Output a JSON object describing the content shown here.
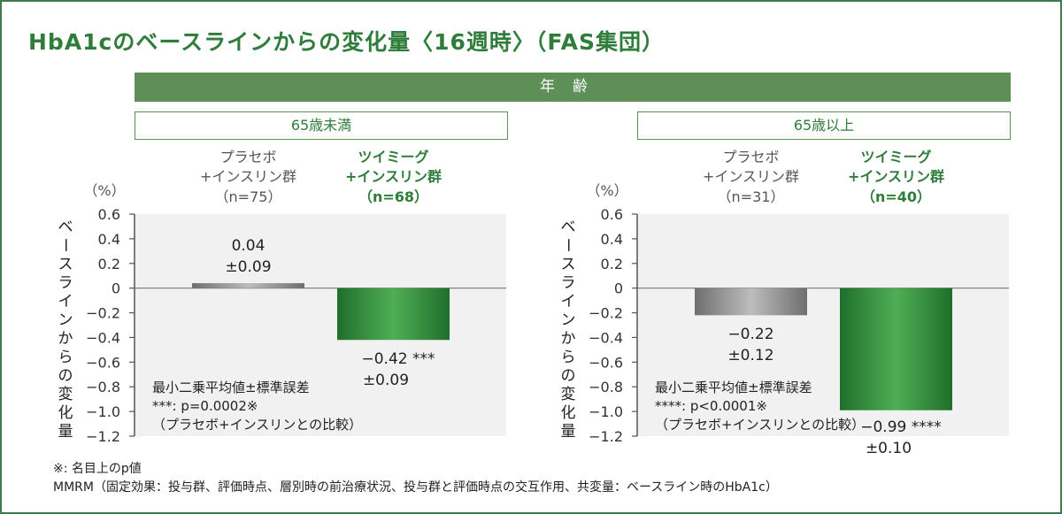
{
  "title": "HbA1cのベースラインからの変化量〈16週時〉（FAS集団）",
  "age_header": "年齢",
  "groups": [
    {
      "label": "65歳未満"
    },
    {
      "label": "65歳以上"
    }
  ],
  "y_axis_label": "ベースラインからの変化量",
  "unit": "（%）",
  "colors": {
    "accent": "#5d8f57",
    "green_bar": "#2f8a3c",
    "gray_bar": "#8c8c8c",
    "plot_bg": "#f1f1f1"
  },
  "chart_data": [
    {
      "type": "bar",
      "group": "65歳未満",
      "ylim": [
        -1.2,
        0.6
      ],
      "yticks": [
        0.6,
        0.4,
        0.2,
        0,
        -0.2,
        -0.4,
        -0.6,
        -0.8,
        -1.0,
        -1.2
      ],
      "ytick_labels": [
        "0.6",
        "0.4",
        "0.2",
        "0",
        "−0.2",
        "−0.4",
        "−0.6",
        "−0.8",
        "−1.0",
        "−1.2"
      ],
      "categories": [
        {
          "line1": "プラセボ",
          "line2": "+インスリン群",
          "n": "（n=75）"
        },
        {
          "line1": "ツイミーグ",
          "line2": "+インスリン群",
          "n": "（n=68）"
        }
      ],
      "values": [
        0.04,
        -0.42
      ],
      "value_labels": [
        "0.04",
        "−0.42  ***"
      ],
      "se_labels": [
        "±0.09",
        "±0.09"
      ],
      "notes": [
        "最小二乗平均値±標準誤差",
        "***: p=0.0002※",
        "（プラセボ+インスリンとの比較）"
      ]
    },
    {
      "type": "bar",
      "group": "65歳以上",
      "ylim": [
        -1.2,
        0.6
      ],
      "yticks": [
        0.6,
        0.4,
        0.2,
        0,
        -0.2,
        -0.4,
        -0.6,
        -0.8,
        -1.0,
        -1.2
      ],
      "ytick_labels": [
        "0.6",
        "0.4",
        "0.2",
        "0",
        "−0.2",
        "−0.4",
        "−0.6",
        "−0.8",
        "−1.0",
        "−1.2"
      ],
      "categories": [
        {
          "line1": "プラセボ",
          "line2": "+インスリン群",
          "n": "（n=31）"
        },
        {
          "line1": "ツイミーグ",
          "line2": "+インスリン群",
          "n": "（n=40）"
        }
      ],
      "values": [
        -0.22,
        -0.99
      ],
      "value_labels": [
        "−0.22",
        "−0.99  ****"
      ],
      "se_labels": [
        "±0.12",
        "±0.10"
      ],
      "notes": [
        "最小二乗平均値±標準誤差",
        "****: p<0.0001※",
        "（プラセボ+インスリンとの比較）"
      ]
    }
  ],
  "footnotes": [
    "※: 名目上のp値",
    "MMRM（固定効果：投与群、評価時点、層別時の前治療状況、投与群と評価時点の交互作用、共変量：ベースライン時のHbA1c）"
  ]
}
